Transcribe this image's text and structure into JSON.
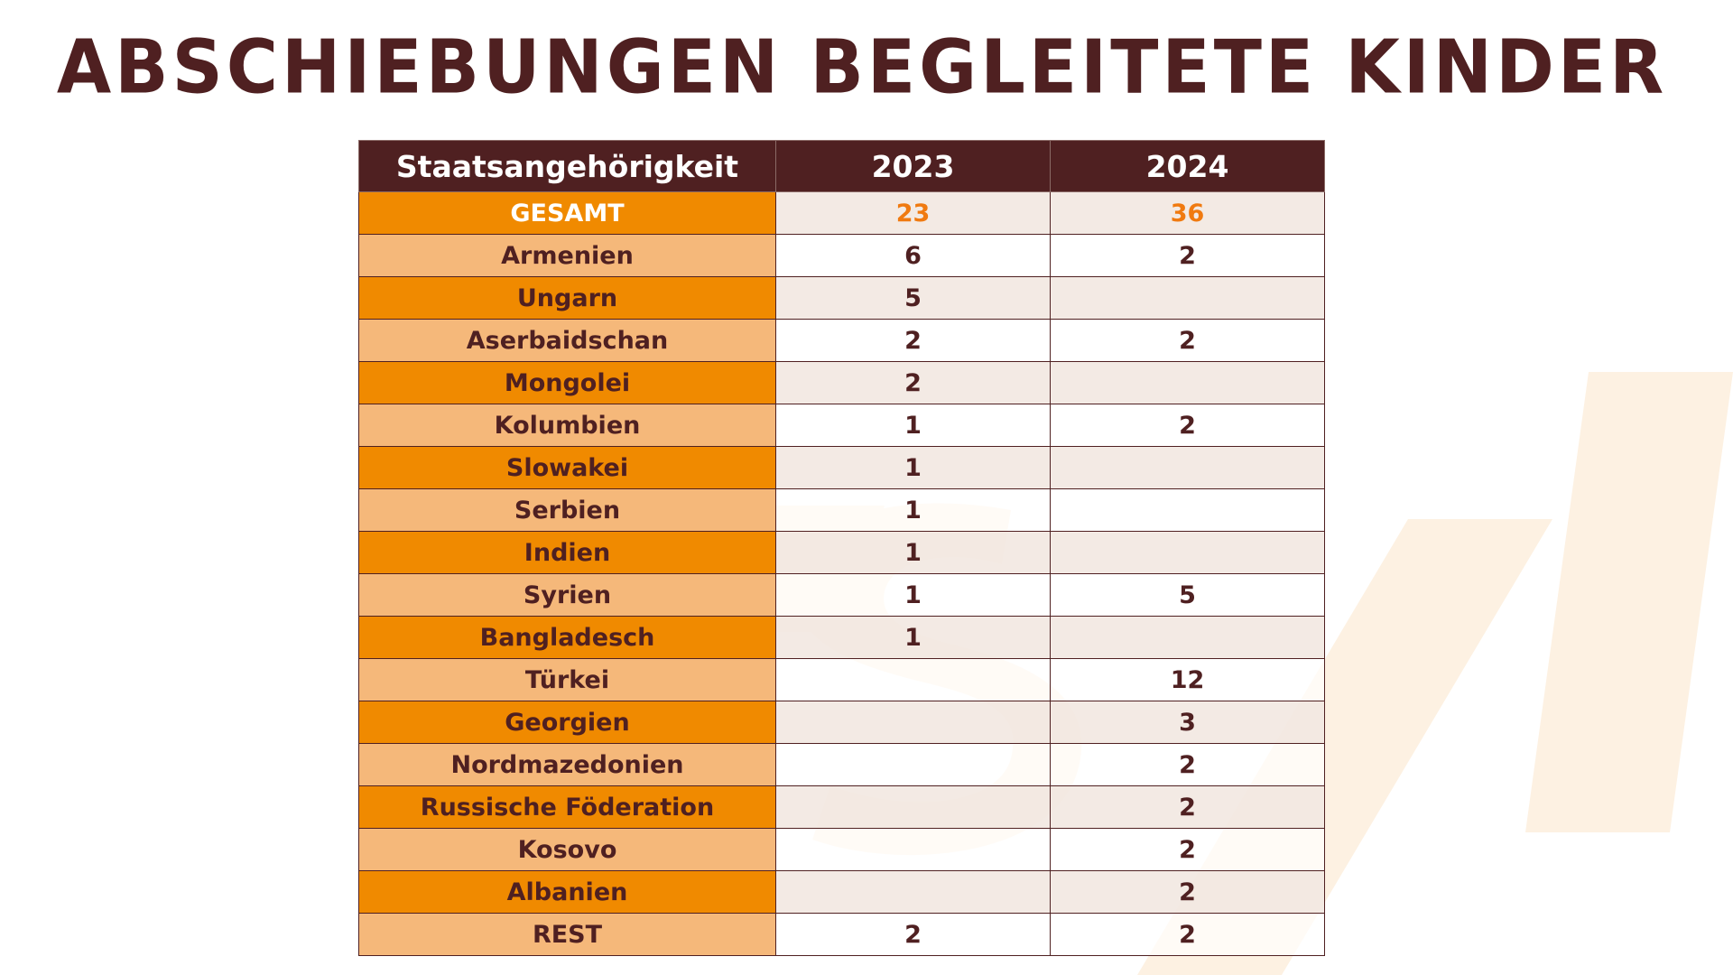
{
  "title": "ABSCHIEBUNGEN BEGLEITETE KINDER",
  "colors": {
    "header_bg": "#4f2021",
    "title": "#4f2021",
    "country_dark": "#f08a00",
    "country_light": "#f5b87a",
    "total_value": "#f07a10",
    "watermark": "#fdf1e2"
  },
  "chart_data": {
    "type": "table",
    "title": "ABSCHIEBUNGEN BEGLEITETE KINDER",
    "columns": [
      "Staatsangehörigkeit",
      "2023",
      "2024"
    ],
    "rows": [
      {
        "label": "GESAMT",
        "y2023": "23",
        "y2024": "36"
      },
      {
        "label": "Armenien",
        "y2023": "6",
        "y2024": "2"
      },
      {
        "label": "Ungarn",
        "y2023": "5",
        "y2024": ""
      },
      {
        "label": "Aserbaidschan",
        "y2023": "2",
        "y2024": "2"
      },
      {
        "label": "Mongolei",
        "y2023": "2",
        "y2024": ""
      },
      {
        "label": "Kolumbien",
        "y2023": "1",
        "y2024": "2"
      },
      {
        "label": "Slowakei",
        "y2023": "1",
        "y2024": ""
      },
      {
        "label": "Serbien",
        "y2023": "1",
        "y2024": ""
      },
      {
        "label": "Indien",
        "y2023": "1",
        "y2024": ""
      },
      {
        "label": "Syrien",
        "y2023": "1",
        "y2024": "5"
      },
      {
        "label": "Bangladesch",
        "y2023": "1",
        "y2024": ""
      },
      {
        "label": "Türkei",
        "y2023": "",
        "y2024": "12"
      },
      {
        "label": "Georgien",
        "y2023": "",
        "y2024": "3"
      },
      {
        "label": "Nordmazedonien",
        "y2023": "",
        "y2024": "2"
      },
      {
        "label": "Russische Föderation",
        "y2023": "",
        "y2024": "2"
      },
      {
        "label": "Kosovo",
        "y2023": "",
        "y2024": "2"
      },
      {
        "label": "Albanien",
        "y2023": "",
        "y2024": "2"
      },
      {
        "label": "REST",
        "y2023": "2",
        "y2024": "2"
      }
    ]
  }
}
